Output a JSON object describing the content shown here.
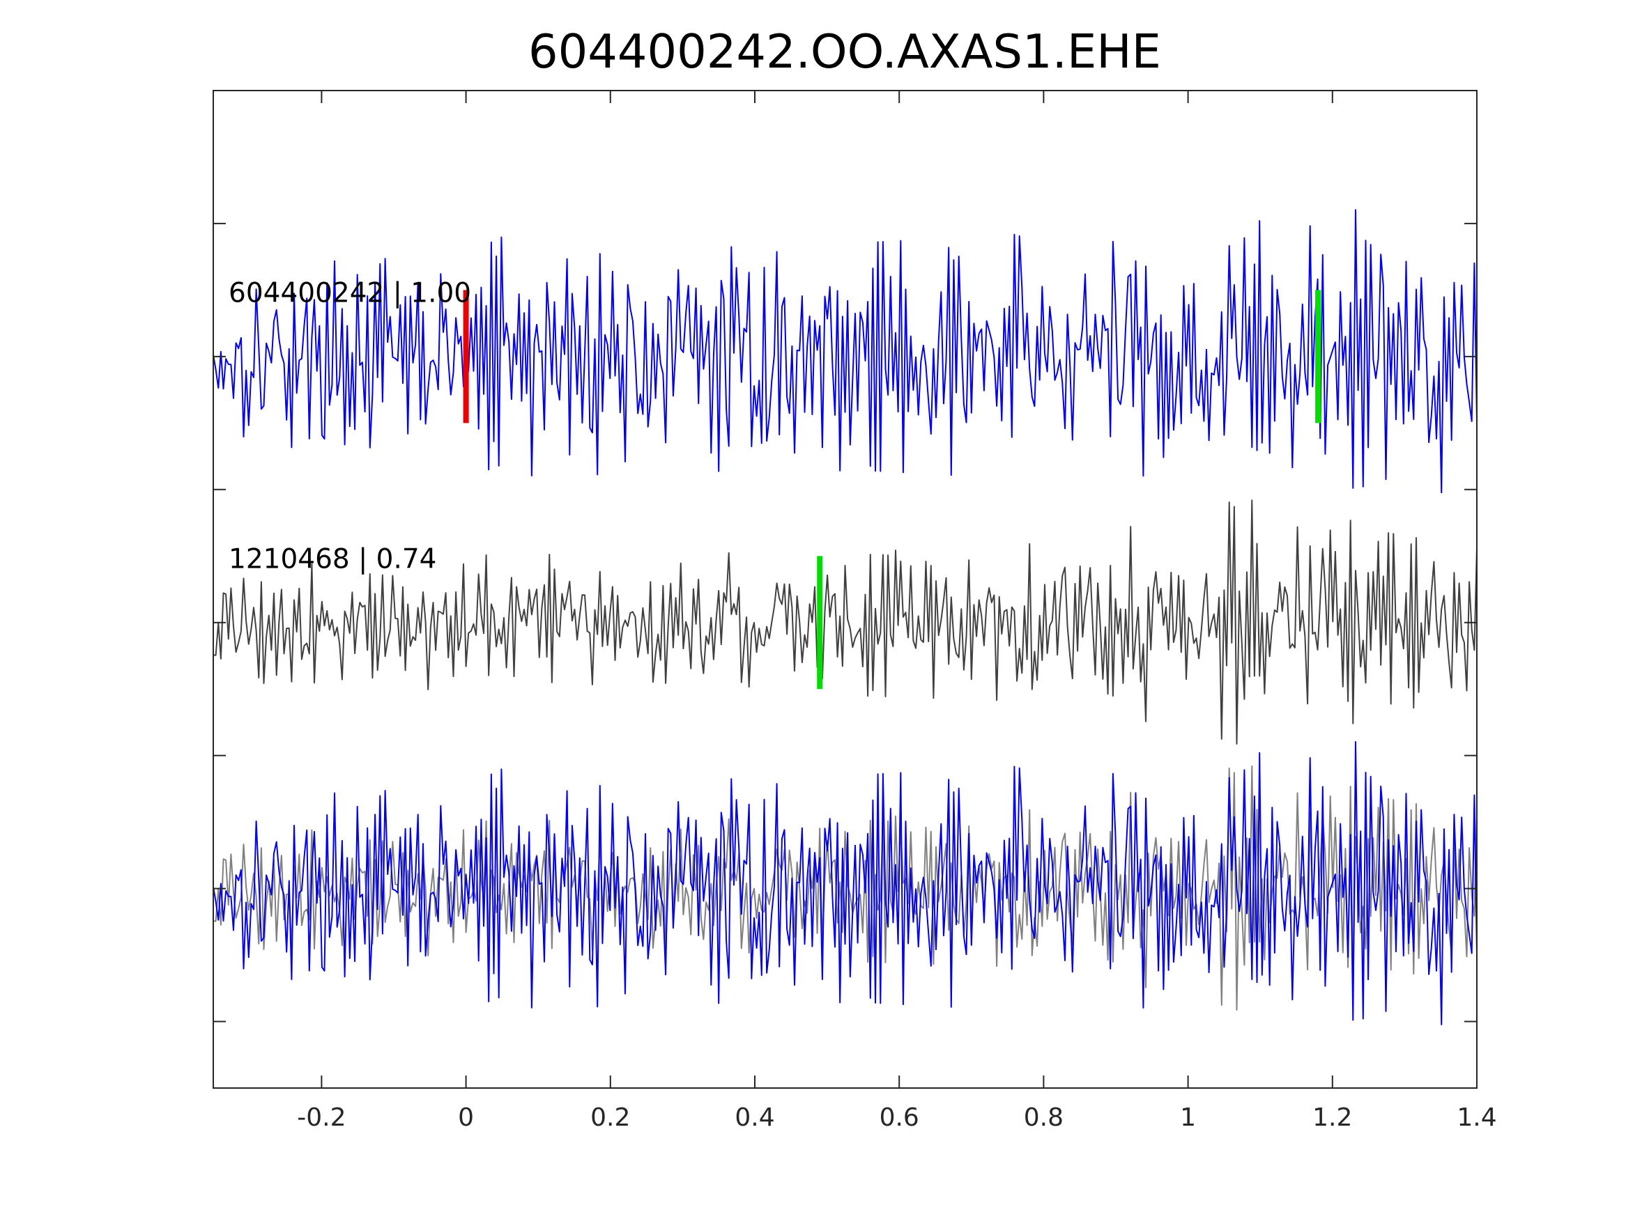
{
  "chart_data": {
    "type": "line",
    "title": "604400242.OO.AXAS1.EHE",
    "xlabel": "",
    "ylabel": "",
    "xlim": [
      -0.35,
      1.4
    ],
    "ylim": [
      0,
      7.5
    ],
    "x_ticks": [
      -0.2,
      0,
      0.2,
      0.4,
      0.6,
      0.8,
      1,
      1.2,
      1.4
    ],
    "x_tick_labels": [
      "-0.2",
      "0",
      "0.2",
      "0.4",
      "0.6",
      "0.8",
      "1",
      "1.2",
      "1.4"
    ],
    "y_ticks": [
      0.5,
      1.5,
      2.5,
      3.5,
      4.5,
      5.5,
      6.5
    ],
    "y_tick_labels": [
      "",
      "",
      "",
      "",
      "",
      "",
      ""
    ],
    "grid": false,
    "sample_interval": 0.0035,
    "traces": [
      {
        "annotation": "604400242 | 1.00",
        "color": "#0000ee",
        "baseline": 5.5,
        "amplitude": 0.9,
        "seed": 17,
        "amp_profile": [
          [
            -0.35,
            0.75
          ],
          [
            0.0,
            0.85
          ],
          [
            0.05,
            1.0
          ],
          [
            0.55,
            0.95
          ],
          [
            0.85,
            1.05
          ],
          [
            1.14,
            1.15
          ],
          [
            1.2,
            1.25
          ],
          [
            1.4,
            1.1
          ]
        ]
      },
      {
        "annotation": "1210468 | 0.74",
        "color": "#404040",
        "baseline": 3.5,
        "amplitude": 0.7,
        "seed": 91,
        "amp_profile": [
          [
            -0.35,
            0.7
          ],
          [
            0.4,
            0.75
          ],
          [
            0.8,
            0.85
          ],
          [
            1.0,
            1.15
          ],
          [
            1.06,
            1.3
          ],
          [
            1.16,
            1.35
          ],
          [
            1.25,
            1.0
          ],
          [
            1.4,
            0.8
          ]
        ]
      }
    ],
    "overlay": {
      "baseline": 1.5,
      "series": [
        {
          "trace": 1,
          "color": "#808080"
        },
        {
          "trace": 0,
          "color": "#0000ee"
        }
      ]
    },
    "markers": [
      {
        "trace": 0,
        "x": 0.0,
        "color": "#ee0000",
        "half_height": 0.5
      },
      {
        "trace": 0,
        "x": 1.18,
        "color": "#00dd00",
        "half_height": 0.5
      },
      {
        "trace": 1,
        "x": 0.49,
        "color": "#00dd00",
        "half_height": 0.5
      }
    ]
  }
}
